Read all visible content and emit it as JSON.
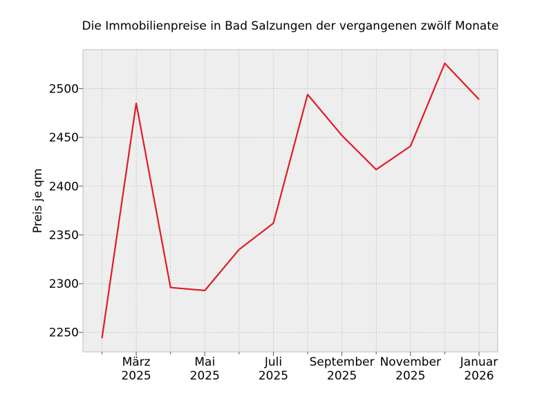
{
  "chart_data": {
    "type": "line",
    "title": "Die Immobilienpreise in Bad Salzungen der vergangenen zwölf Monate",
    "xlabel": "",
    "ylabel": "Preis je qm",
    "x": [
      "2025-02",
      "2025-03",
      "2025-04",
      "2025-05",
      "2025-06",
      "2025-07",
      "2025-08",
      "2025-09",
      "2025-10",
      "2025-11",
      "2025-12",
      "2026-01"
    ],
    "values": [
      2244,
      2485,
      2296,
      2293,
      2335,
      2362,
      2494,
      2452,
      2417,
      2441,
      2526,
      2489
    ],
    "ylim": [
      2230,
      2540
    ],
    "yticks": [
      2250,
      2300,
      2350,
      2400,
      2450,
      2500
    ],
    "xtick_labels": [
      {
        "month": "März",
        "year": "2025",
        "index": 1
      },
      {
        "month": "Mai",
        "year": "2025",
        "index": 3
      },
      {
        "month": "Juli",
        "year": "2025",
        "index": 5
      },
      {
        "month": "September",
        "year": "2025",
        "index": 7
      },
      {
        "month": "November",
        "year": "2025",
        "index": 9
      },
      {
        "month": "Januar",
        "year": "2026",
        "index": 11
      }
    ],
    "grid": true,
    "colors": {
      "line": "#e01b24",
      "plot_bg": "#eeeeee",
      "grid": "#b8b8b8",
      "frame": "#bcbcbc"
    }
  }
}
